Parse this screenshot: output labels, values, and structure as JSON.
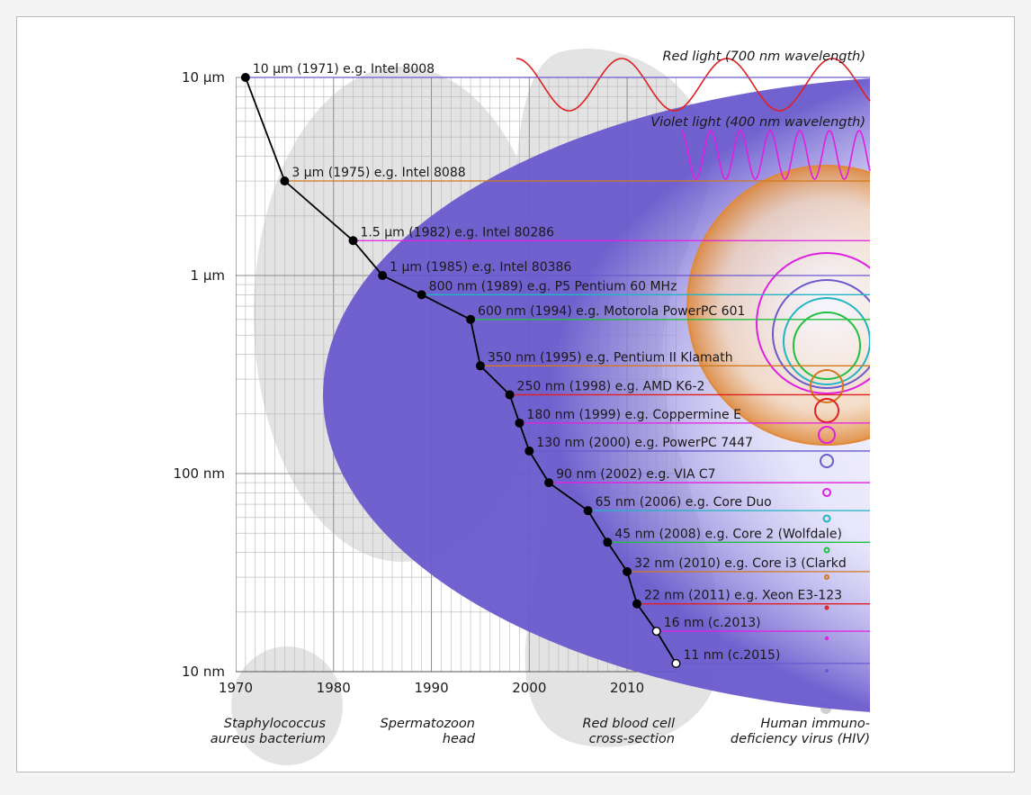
{
  "chart_data": {
    "type": "scatter",
    "title": "",
    "xlabel": "",
    "ylabel": "",
    "x_range": [
      1970,
      2015
    ],
    "y_scale": "log",
    "y_ticks": [
      "10 µm",
      "1 µm",
      "100 nm",
      "10 nm"
    ],
    "x_ticks": [
      "1970",
      "1980",
      "1990",
      "2000",
      "2010"
    ],
    "grid": true,
    "series": [
      {
        "values_nm": [
          10000,
          3000,
          1500,
          1000,
          800,
          600,
          350,
          250,
          180,
          130,
          90,
          65,
          45,
          32,
          22,
          16,
          11
        ],
        "years": [
          1971,
          1975,
          1982,
          1985,
          1989,
          1994,
          1995,
          1998,
          1999,
          2000,
          2002,
          2006,
          2008,
          2010,
          2011,
          2013,
          2015
        ]
      }
    ],
    "point_labels": [
      "10 µm (1971) e.g. Intel 8008",
      "3 µm (1975) e.g. Intel 8088",
      "1.5 µm (1982) e.g. Intel 80286",
      "1 µm (1985) e.g. Intel 80386",
      "800 nm (1989) e.g. P5 Pentium 60 MHz",
      "600 nm (1994) e.g. Motorola PowerPC 601",
      "350 nm (1995) e.g. Pentium II Klamath",
      "250 nm (1998) e.g. AMD K6-2",
      "180 nm (1999) e.g. Coppermine E",
      "130 nm (2000) e.g. PowerPC 7447",
      "90 nm (2002) e.g. VIA C7",
      "65 nm (2006) e.g. Core Duo",
      "45 nm (2008) e.g. Core 2 (Wolfdale)",
      "32 nm (2010) e.g. Core i3 (Clarkd",
      "22 nm (2011) e.g. Xeon E3-123",
      "16 nm (c.2013)",
      "11 nm (c.2015)"
    ],
    "open_points": [
      false,
      false,
      false,
      false,
      false,
      false,
      false,
      false,
      false,
      false,
      false,
      false,
      false,
      false,
      false,
      true,
      true
    ],
    "reference_line_colors": [
      "#6a5acd",
      "#d2781e",
      "#e020e0",
      "#6a5acd",
      "#20b5c5",
      "#20c040",
      "#d2781e",
      "#e02020",
      "#e020e0",
      "#6a5acd",
      "#e020e0",
      "#20b5c5",
      "#20c040",
      "#d2781e",
      "#e02020",
      "#e020e0",
      "#6a5acd"
    ],
    "annotations": {
      "red_light": "Red light (700 nm wavelength)",
      "violet_light": "Violet light (400 nm wavelength)",
      "scale_objects": [
        [
          "Staphylococcus",
          "aureus bacterium"
        ],
        [
          "Spermatozoon",
          "head"
        ],
        [
          "Red blood cell",
          "cross-section"
        ],
        [
          "Human immuno-",
          "deficiency virus (HIV)"
        ]
      ]
    },
    "colors": {
      "red": "#e02020",
      "violet": "#e020e0",
      "blue": "#6a5acd",
      "orange": "#d2781e",
      "cyan": "#20b5c5",
      "green": "#20c040",
      "silhouette": "#dadada",
      "line": "#000000"
    }
  }
}
